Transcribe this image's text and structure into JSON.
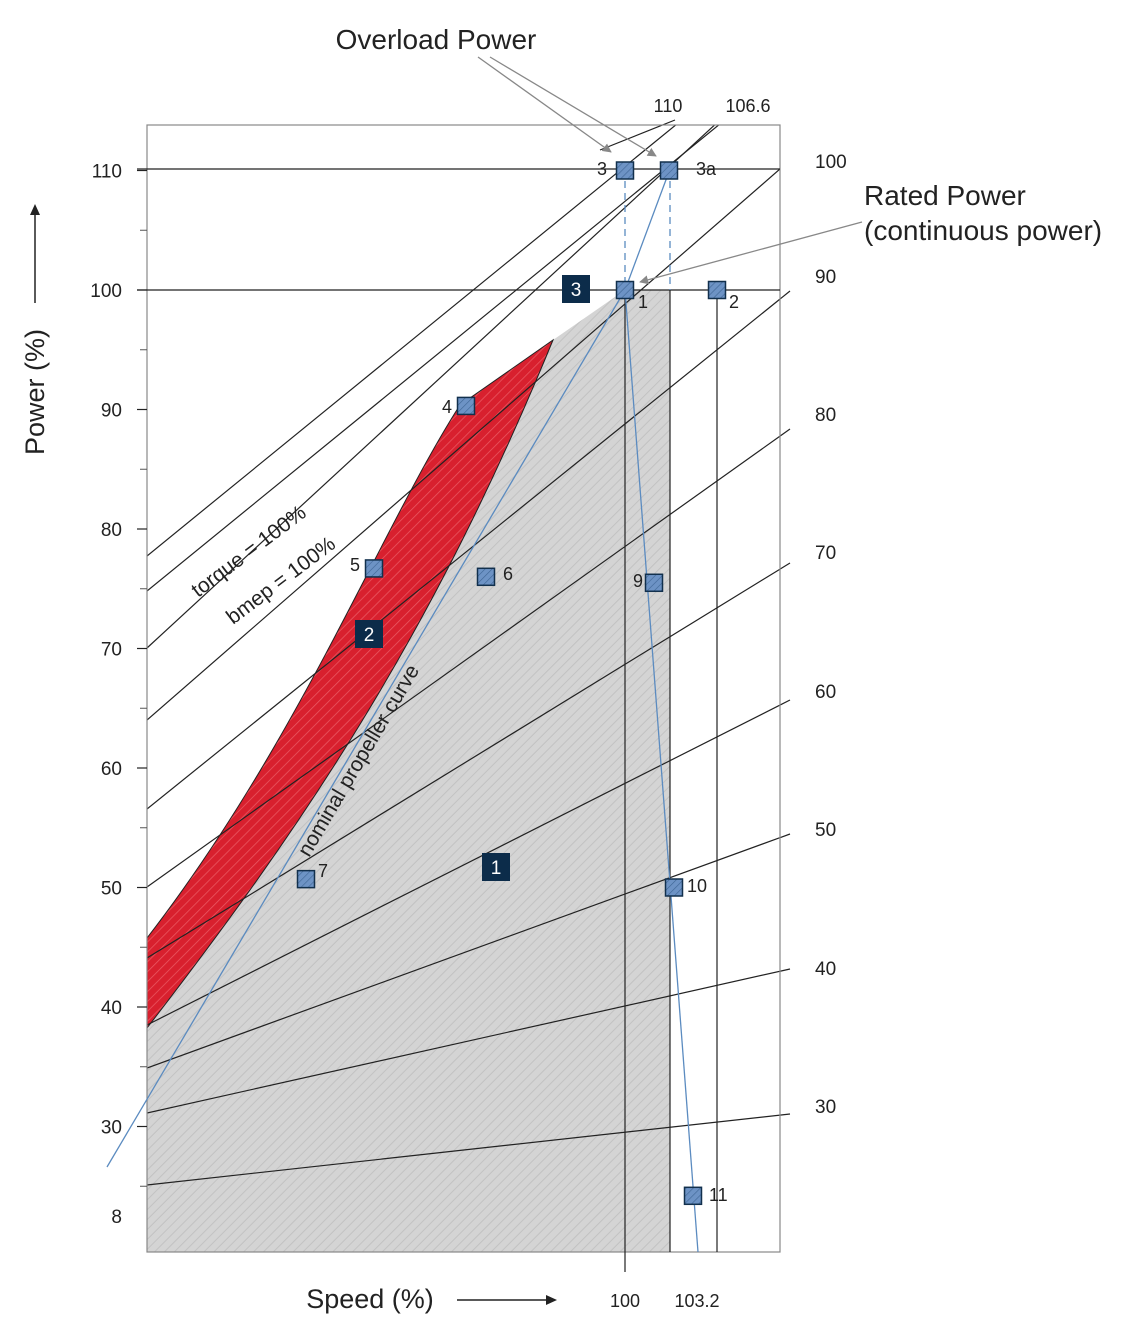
{
  "chart_data": {
    "type": "line",
    "title": "",
    "ylabel": "Power (%)",
    "xlabel": "Speed (%)",
    "ylim": [
      17,
      113
    ],
    "y_ticks": [
      "110",
      "100",
      "90",
      "80",
      "70",
      "60",
      "50",
      "40",
      "30",
      "8"
    ],
    "x_ticks": [
      "100",
      "103.2"
    ],
    "grid": false,
    "callouts": {
      "overload": "Overload Power",
      "rated_line1": "Rated Power",
      "rated_line2": "(continuous power)"
    },
    "curve_labels": {
      "torque": "torque = 100%",
      "bmep": "bmep = 100%",
      "propeller": "nominal propeller curve"
    },
    "top_labels": [
      "110",
      "106.6"
    ],
    "right_labels": [
      "100",
      "90",
      "80",
      "70",
      "60",
      "50",
      "40",
      "30"
    ],
    "areas": [
      {
        "name": "1",
        "color": "#d4d4d4"
      },
      {
        "name": "2",
        "color": "#d8202e"
      },
      {
        "name": "3",
        "color": "#0c2c4a"
      }
    ],
    "points": [
      {
        "label": "1",
        "power": 100
      },
      {
        "label": "2",
        "power": 100
      },
      {
        "label": "3",
        "power": 110
      },
      {
        "label": "3a",
        "power": 110
      },
      {
        "label": "4",
        "power": 90.3
      },
      {
        "label": "5",
        "power": 76.7
      },
      {
        "label": "6",
        "power": 76.0
      },
      {
        "label": "7",
        "power": 50.7
      },
      {
        "label": "9",
        "power": 75.5
      },
      {
        "label": "10",
        "power": 50.0
      },
      {
        "label": "11",
        "power": 24.2
      }
    ],
    "colors": {
      "area1": "#d4d4d4",
      "area2": "#d8202e",
      "marker": "#6d93c5",
      "marker_edge": "#12304d",
      "propeller_line": "#5b8bc0",
      "badge": "#0c2c4a"
    }
  }
}
